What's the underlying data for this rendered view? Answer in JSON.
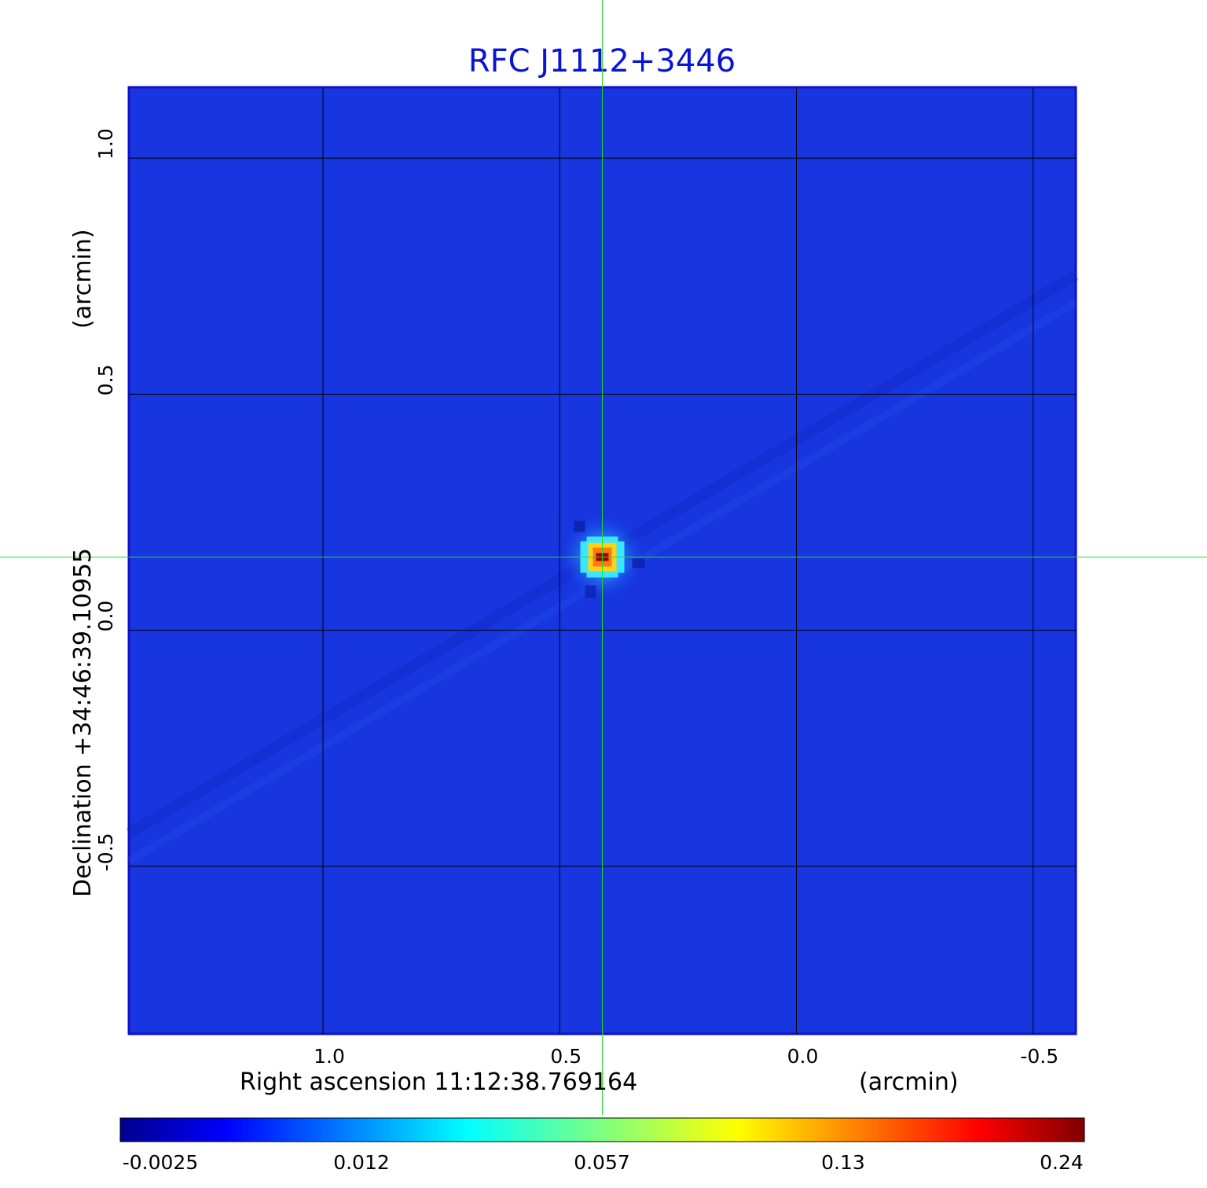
{
  "chart_data": {
    "type": "heatmap",
    "title": "RFC J1112+3446",
    "xlabel": "Right ascension  11:12:38.769164",
    "xunit": "(arcmin)",
    "ylabel": "Declination  +34:46:39.10955",
    "yunit": "(arcmin)",
    "xlim": [
      1.41,
      -0.59
    ],
    "ylim": [
      -0.855,
      1.15
    ],
    "x_ticks": [
      1.0,
      0.5,
      0.0,
      -0.5
    ],
    "x_tick_labels": [
      "1.0",
      "0.5",
      "0.0",
      "-0.5"
    ],
    "y_ticks": [
      1.0,
      0.5,
      0.0,
      -0.5
    ],
    "y_tick_labels": [
      "1.0",
      "0.5",
      "0.0",
      "-0.5"
    ],
    "grid": true,
    "crosshair": {
      "x": 0.41,
      "y": 0.155
    },
    "source_peak": {
      "x": 0.41,
      "y": 0.155,
      "value": 0.24
    },
    "colorbar": {
      "ticks": [
        -0.0025,
        0.012,
        0.057,
        0.13,
        0.24
      ],
      "tick_labels": [
        "-0.0025",
        "0.012",
        "0.057",
        "0.13",
        "0.24"
      ],
      "colormap": "jet"
    },
    "colors": {
      "title": "#0a14d4",
      "background_field": "#1736e0",
      "grid": "#000000",
      "crosshair": "#22dd22"
    }
  }
}
